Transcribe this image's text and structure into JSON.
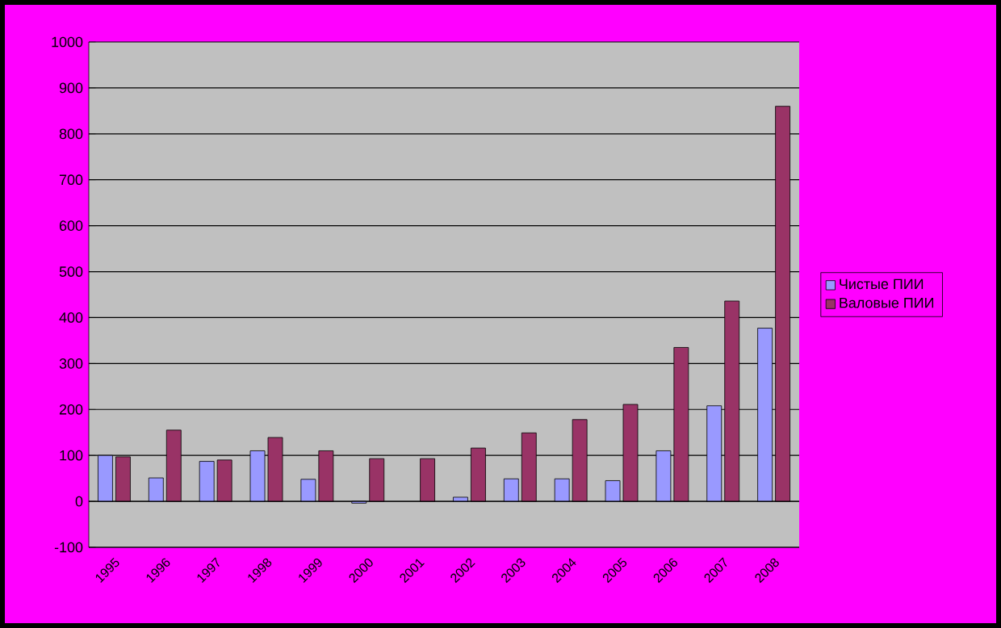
{
  "chart_data": {
    "type": "bar",
    "categories": [
      "1995",
      "1996",
      "1997",
      "1998",
      "1999",
      "2000",
      "2001",
      "2002",
      "2003",
      "2004",
      "2005",
      "2006",
      "2007",
      "2008"
    ],
    "series": [
      {
        "name": "Чистые ПИИ",
        "color": "#9999ff",
        "values": [
          100,
          51,
          87,
          110,
          48,
          -4,
          null,
          9,
          49,
          49,
          45,
          110,
          208,
          377
        ]
      },
      {
        "name": "Валовые ПИИ",
        "color": "#993366",
        "values": [
          97,
          155,
          90,
          139,
          110,
          93,
          93,
          116,
          149,
          178,
          211,
          335,
          436,
          860
        ]
      }
    ],
    "ylim": [
      -100,
      1000
    ],
    "yticks": [
      -100,
      0,
      100,
      200,
      300,
      400,
      500,
      600,
      700,
      800,
      900,
      1000
    ],
    "grid": "y",
    "legend": "right"
  }
}
